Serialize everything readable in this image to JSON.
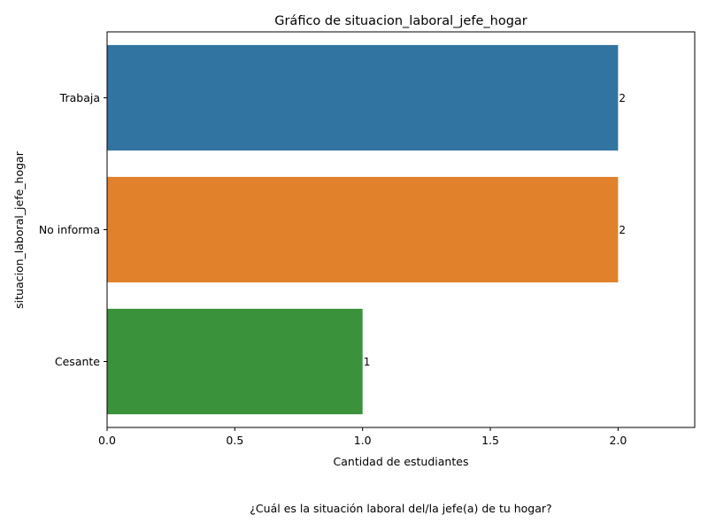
{
  "chart_data": {
    "type": "bar",
    "orientation": "horizontal",
    "title": "Gráfico de situacion_laboral_jefe_hogar",
    "xlabel": "Cantidad de estudiantes",
    "ylabel": "situacion_laboral_jefe_hogar",
    "caption": "¿Cuál es la situación laboral del/la jefe(a) de tu hogar?",
    "categories": [
      "Trabaja",
      "No informa",
      "Cesante"
    ],
    "values": [
      2,
      2,
      1
    ],
    "data_labels": [
      "2",
      "2",
      "1"
    ],
    "colors": [
      "#3274a1",
      "#e1812c",
      "#3a923a"
    ],
    "xlim": [
      0,
      2.3
    ],
    "xticks": [
      0.0,
      0.5,
      1.0,
      1.5,
      2.0
    ],
    "xtick_labels": [
      "0.0",
      "0.5",
      "1.0",
      "1.5",
      "2.0"
    ],
    "grid": false,
    "legend": "none"
  }
}
